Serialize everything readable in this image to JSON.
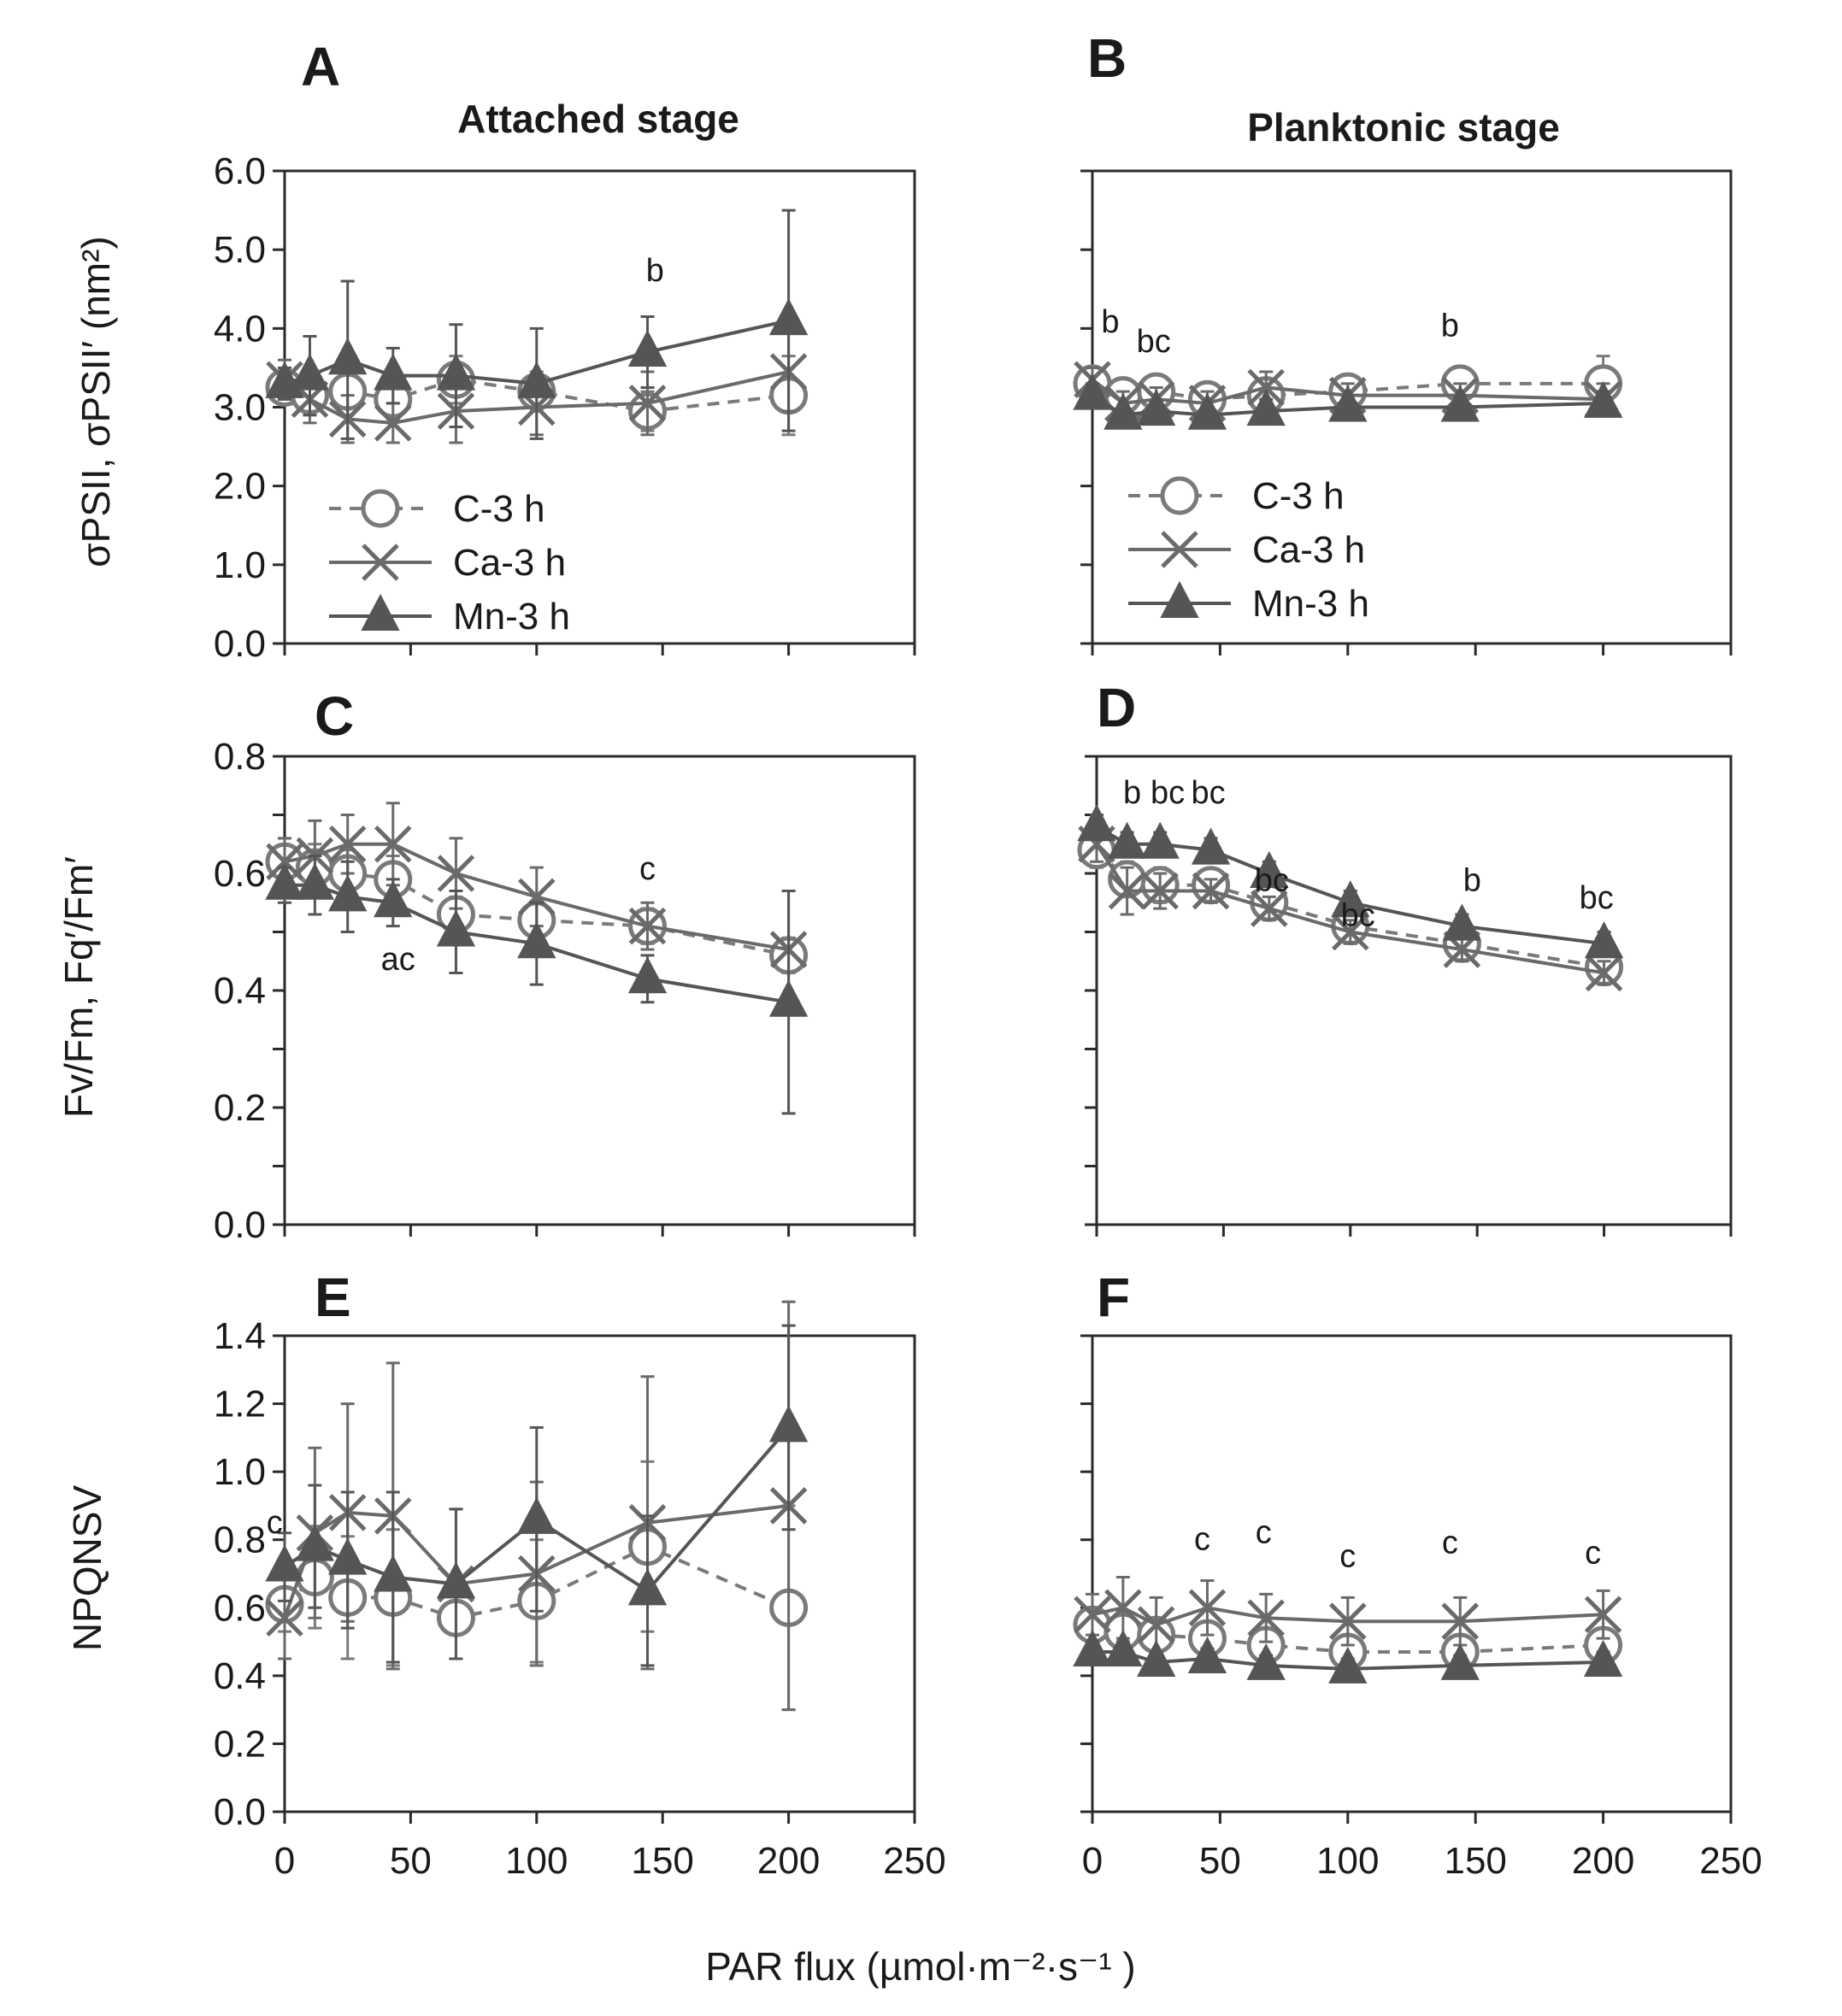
{
  "figure": {
    "xlabel": "PAR flux (µmol·m⁻²·s⁻¹ )",
    "column_titles": [
      "Attached stage",
      "Planktonic stage"
    ],
    "x_tick_labels": [
      "0",
      "50",
      "100",
      "150",
      "200",
      "250"
    ],
    "colors": {
      "C-3 h": "#7a7a7a",
      "Ca-3 h": "#6a6a6a",
      "Mn-3 h": "#555555"
    }
  },
  "chart_data": [
    {
      "panel": "A",
      "type": "line",
      "title": "Attached stage",
      "ylabel": "σPSII, σPSII′ (nm²)",
      "xlim": [
        0,
        250
      ],
      "ylim": [
        0,
        6
      ],
      "yticks": [
        "0.0",
        "1.0",
        "2.0",
        "3.0",
        "4.0",
        "5.0",
        "6.0"
      ],
      "x": [
        0,
        10,
        25,
        43,
        68,
        100,
        144,
        200
      ],
      "series": [
        {
          "name": "C-3 h",
          "marker": "circle",
          "dash": true,
          "values": [
            3.25,
            3.15,
            3.2,
            3.1,
            3.35,
            3.2,
            2.95,
            3.15
          ],
          "errors": [
            0.2,
            0.25,
            0.3,
            0.25,
            0.3,
            0.25,
            0.25,
            0.5
          ]
        },
        {
          "name": "Ca-3 h",
          "marker": "x",
          "dash": false,
          "values": [
            3.35,
            3.1,
            2.85,
            2.8,
            2.95,
            3.0,
            3.05,
            3.45
          ],
          "errors": [
            0.25,
            0.3,
            0.3,
            0.25,
            0.4,
            0.35,
            0.4,
            0.5
          ]
        },
        {
          "name": "Mn-3 h",
          "marker": "triangle",
          "dash": false,
          "values": [
            3.3,
            3.4,
            3.6,
            3.4,
            3.4,
            3.3,
            3.7,
            4.1
          ],
          "errors": [
            0.2,
            0.5,
            1.0,
            0.35,
            0.65,
            0.7,
            0.45,
            1.4
          ]
        }
      ],
      "annotations": [
        {
          "text": "b",
          "x": 147,
          "y": 4.6
        }
      ],
      "legend": {
        "position": "bottom-left",
        "entries": [
          "C-3 h",
          "Ca-3 h",
          "Mn-3 h"
        ]
      }
    },
    {
      "panel": "B",
      "type": "line",
      "title": "Planktonic stage",
      "ylabel": "",
      "xlim": [
        0,
        250
      ],
      "ylim": [
        0,
        6
      ],
      "yticks": [
        "",
        "",
        "",
        "",
        "",
        "",
        ""
      ],
      "x": [
        0,
        12,
        25,
        45,
        68,
        100,
        144,
        200
      ],
      "series": [
        {
          "name": "C-3 h",
          "marker": "circle",
          "dash": true,
          "values": [
            3.3,
            3.15,
            3.2,
            3.1,
            3.15,
            3.2,
            3.3,
            3.3
          ],
          "errors": [
            0.15,
            0.15,
            0.15,
            0.15,
            0.15,
            0.15,
            0.15,
            0.35
          ]
        },
        {
          "name": "Ca-3 h",
          "marker": "x",
          "dash": false,
          "values": [
            3.35,
            3.05,
            3.1,
            3.05,
            3.25,
            3.15,
            3.15,
            3.1
          ],
          "errors": [
            0.15,
            0.15,
            0.15,
            0.15,
            0.2,
            0.15,
            0.15,
            0.2
          ]
        },
        {
          "name": "Mn-3 h",
          "marker": "triangle",
          "dash": false,
          "values": [
            3.15,
            2.9,
            2.95,
            2.9,
            2.95,
            3.0,
            3.0,
            3.05
          ],
          "errors": [
            0.15,
            0.1,
            0.1,
            0.1,
            0.15,
            0.1,
            0.1,
            0.15
          ]
        }
      ],
      "annotations": [
        {
          "text": "b",
          "x": 7,
          "y": 3.95
        },
        {
          "text": "bc",
          "x": 24,
          "y": 3.7
        },
        {
          "text": "b",
          "x": 140,
          "y": 3.9
        }
      ],
      "legend": {
        "position": "bottom-left",
        "entries": [
          "C-3 h",
          "Ca-3 h",
          "Mn-3 h"
        ]
      }
    },
    {
      "panel": "C",
      "type": "line",
      "title": "",
      "ylabel": "Fv/Fm, Fq′/Fm′",
      "xlim": [
        0,
        250
      ],
      "ylim": [
        0,
        0.8
      ],
      "yticks": [
        "0.0",
        "",
        "0.2",
        "",
        "0.4",
        "",
        "0.6",
        "",
        "0.8"
      ],
      "x": [
        0,
        12,
        25,
        43,
        68,
        100,
        144,
        200
      ],
      "series": [
        {
          "name": "C-3 h",
          "marker": "circle",
          "dash": true,
          "values": [
            0.62,
            0.61,
            0.6,
            0.59,
            0.53,
            0.52,
            0.51,
            0.46
          ],
          "errors": [
            0.04,
            0.04,
            0.04,
            0.04,
            0.03,
            0.03,
            0.03,
            0.03
          ]
        },
        {
          "name": "Ca-3 h",
          "marker": "x",
          "dash": false,
          "values": [
            0.62,
            0.63,
            0.65,
            0.65,
            0.6,
            0.56,
            0.51,
            0.47
          ],
          "errors": [
            0.04,
            0.06,
            0.05,
            0.07,
            0.06,
            0.05,
            0.04,
            0.1
          ]
        },
        {
          "name": "Mn-3 h",
          "marker": "triangle",
          "dash": false,
          "values": [
            0.58,
            0.58,
            0.56,
            0.55,
            0.5,
            0.48,
            0.42,
            0.38
          ],
          "errors": [
            0.03,
            0.05,
            0.06,
            0.04,
            0.07,
            0.07,
            0.04,
            0.19
          ]
        }
      ],
      "annotations": [
        {
          "text": "ac",
          "x": 45,
          "y": 0.435
        },
        {
          "text": "c",
          "x": 144,
          "y": 0.59
        }
      ]
    },
    {
      "panel": "D",
      "type": "line",
      "title": "",
      "ylabel": "",
      "xlim": [
        0,
        250
      ],
      "ylim": [
        0,
        0.8
      ],
      "yticks": [
        "",
        "",
        "",
        "",
        "",
        "",
        "",
        "",
        ""
      ],
      "x": [
        0,
        12,
        25,
        45,
        68,
        100,
        144,
        200
      ],
      "series": [
        {
          "name": "C-3 h",
          "marker": "circle",
          "dash": true,
          "values": [
            0.64,
            0.59,
            0.58,
            0.58,
            0.55,
            0.51,
            0.48,
            0.44
          ],
          "errors": [
            0.03,
            0.03,
            0.03,
            0.02,
            0.02,
            0.02,
            0.02,
            0.02
          ]
        },
        {
          "name": "Ca-3 h",
          "marker": "x",
          "dash": false,
          "values": [
            0.65,
            0.57,
            0.57,
            0.57,
            0.54,
            0.5,
            0.47,
            0.43
          ],
          "errors": [
            0.03,
            0.04,
            0.03,
            0.02,
            0.02,
            0.02,
            0.02,
            0.02
          ]
        },
        {
          "name": "Mn-3 h",
          "marker": "triangle",
          "dash": false,
          "values": [
            0.68,
            0.65,
            0.65,
            0.64,
            0.6,
            0.55,
            0.51,
            0.48
          ],
          "errors": [
            0.02,
            0.02,
            0.02,
            0.02,
            0.02,
            0.02,
            0.02,
            0.02
          ]
        }
      ],
      "annotations": [
        {
          "text": "b",
          "x": 14,
          "y": 0.72
        },
        {
          "text": "bc",
          "x": 28,
          "y": 0.72
        },
        {
          "text": "bc",
          "x": 44,
          "y": 0.72
        },
        {
          "text": "bc",
          "x": 69,
          "y": 0.57
        },
        {
          "text": "bc",
          "x": 103,
          "y": 0.51
        },
        {
          "text": "b",
          "x": 148,
          "y": 0.57
        },
        {
          "text": "bc",
          "x": 197,
          "y": 0.54
        }
      ]
    },
    {
      "panel": "E",
      "type": "line",
      "title": "",
      "ylabel": "NPQNSV",
      "xlim": [
        0,
        250
      ],
      "ylim": [
        0,
        1.4
      ],
      "yticks": [
        "0.0",
        "0.2",
        "0.4",
        "0.6",
        "0.8",
        "1.0",
        "1.2",
        "1.4"
      ],
      "x": [
        0,
        12,
        25,
        43,
        68,
        100,
        144,
        200
      ],
      "series": [
        {
          "name": "C-3 h",
          "marker": "circle",
          "dash": true,
          "values": [
            0.61,
            0.69,
            0.63,
            0.63,
            0.57,
            0.62,
            0.78,
            0.6
          ],
          "errors": [
            0.08,
            0.15,
            0.18,
            0.2,
            0.12,
            0.18,
            0.25,
            0.3
          ]
        },
        {
          "name": "Ca-3 h",
          "marker": "x",
          "dash": false,
          "values": [
            0.57,
            0.82,
            0.88,
            0.87,
            0.67,
            0.7,
            0.85,
            0.9
          ],
          "errors": [
            0.12,
            0.25,
            0.32,
            0.45,
            0.22,
            0.27,
            0.43,
            0.6
          ]
        },
        {
          "name": "Mn-3 h",
          "marker": "triangle",
          "dash": false,
          "values": [
            0.72,
            0.78,
            0.74,
            0.69,
            0.67,
            0.86,
            0.65,
            1.13
          ],
          "errors": [
            0.1,
            0.18,
            0.2,
            0.25,
            0.22,
            0.27,
            0.22,
            0.3
          ]
        }
      ],
      "annotations": [
        {
          "text": "c",
          "x": -4,
          "y": 0.82
        }
      ]
    },
    {
      "panel": "F",
      "type": "line",
      "title": "",
      "ylabel": "",
      "xlim": [
        0,
        250
      ],
      "ylim": [
        0,
        1.4
      ],
      "yticks": [
        "",
        "",
        "",
        "",
        "",
        "",
        "",
        ""
      ],
      "x": [
        0,
        12,
        25,
        45,
        68,
        100,
        144,
        200
      ],
      "series": [
        {
          "name": "C-3 h",
          "marker": "circle",
          "dash": true,
          "values": [
            0.55,
            0.53,
            0.52,
            0.51,
            0.49,
            0.47,
            0.47,
            0.49
          ],
          "errors": [
            0.05,
            0.05,
            0.05,
            0.05,
            0.05,
            0.05,
            0.05,
            0.05
          ]
        },
        {
          "name": "Ca-3 h",
          "marker": "x",
          "dash": false,
          "values": [
            0.58,
            0.6,
            0.55,
            0.6,
            0.57,
            0.56,
            0.56,
            0.58
          ],
          "errors": [
            0.06,
            0.09,
            0.08,
            0.08,
            0.07,
            0.07,
            0.07,
            0.07
          ]
        },
        {
          "name": "Mn-3 h",
          "marker": "triangle",
          "dash": false,
          "values": [
            0.47,
            0.47,
            0.44,
            0.45,
            0.43,
            0.42,
            0.43,
            0.44
          ],
          "errors": [
            0.03,
            0.03,
            0.03,
            0.03,
            0.03,
            0.03,
            0.03,
            0.03
          ]
        }
      ],
      "annotations": [
        {
          "text": "c",
          "x": 43,
          "y": 0.77
        },
        {
          "text": "c",
          "x": 67,
          "y": 0.79
        },
        {
          "text": "c",
          "x": 100,
          "y": 0.72
        },
        {
          "text": "c",
          "x": 140,
          "y": 0.76
        },
        {
          "text": "c",
          "x": 196,
          "y": 0.73
        }
      ]
    }
  ]
}
